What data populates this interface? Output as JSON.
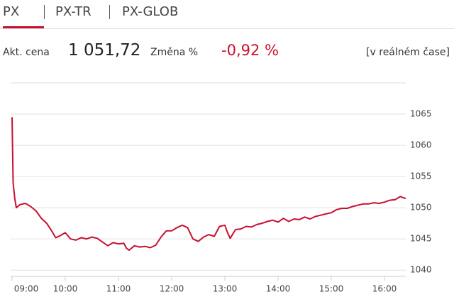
{
  "tabs": [
    "PX",
    "PX-TR",
    "PX-GLOB"
  ],
  "quote": {
    "price_label": "Akt. cena",
    "price": "1 051,72",
    "change_label": "Změna %",
    "change": "-0,92 %",
    "realtime": "[v reálném čase]"
  },
  "chart_data": {
    "type": "line",
    "x": [
      9.0,
      9.02,
      9.05,
      9.08,
      9.15,
      9.25,
      9.35,
      9.45,
      9.55,
      9.65,
      9.75,
      9.82,
      9.9,
      10.0,
      10.1,
      10.2,
      10.3,
      10.4,
      10.5,
      10.6,
      10.7,
      10.8,
      10.9,
      11.0,
      11.1,
      11.15,
      11.2,
      11.3,
      11.4,
      11.5,
      11.6,
      11.7,
      11.8,
      11.9,
      12.0,
      12.1,
      12.2,
      12.3,
      12.4,
      12.5,
      12.6,
      12.7,
      12.8,
      12.9,
      13.0,
      13.05,
      13.1,
      13.2,
      13.3,
      13.4,
      13.5,
      13.6,
      13.7,
      13.8,
      13.9,
      14.0,
      14.1,
      14.2,
      14.3,
      14.4,
      14.5,
      14.6,
      14.7,
      14.8,
      14.9,
      15.0,
      15.1,
      15.2,
      15.3,
      15.4,
      15.5,
      15.6,
      15.7,
      15.8,
      15.9,
      16.0,
      16.1,
      16.2,
      16.3,
      16.35,
      16.4
    ],
    "series": [
      {
        "color": "#c8102e",
        "values": [
          1064.5,
          1054,
          1051.5,
          1050,
          1050.5,
          1050.7,
          1050.2,
          1049.5,
          1048.3,
          1047.5,
          1046.2,
          1045.2,
          1045.5,
          1046,
          1045,
          1044.8,
          1045.2,
          1045,
          1045.3,
          1045.1,
          1044.5,
          1043.9,
          1044.4,
          1044.2,
          1044.3,
          1043.5,
          1043.2,
          1043.9,
          1043.7,
          1043.8,
          1043.6,
          1044.0,
          1045.3,
          1046.3,
          1046.3,
          1046.8,
          1047.2,
          1046.8,
          1045.0,
          1044.6,
          1045.3,
          1045.7,
          1045.4,
          1047.0,
          1047.2,
          1046.0,
          1045.1,
          1046.5,
          1046.6,
          1047.0,
          1046.9,
          1047.3,
          1047.5,
          1047.8,
          1048.0,
          1047.7,
          1048.3,
          1047.8,
          1048.2,
          1048.1,
          1048.5,
          1048.2,
          1048.6,
          1048.8,
          1049.0,
          1049.2,
          1049.7,
          1049.9,
          1049.9,
          1050.2,
          1050.4,
          1050.6,
          1050.6,
          1050.8,
          1050.7,
          1050.9,
          1051.2,
          1051.3,
          1051.8,
          1051.6,
          1051.5
        ]
      }
    ],
    "xlim": [
      9,
      16.4
    ],
    "xticks": [
      {
        "value": 9,
        "label": "09:00"
      },
      {
        "value": 10,
        "label": "10:00"
      },
      {
        "value": 11,
        "label": "11:00"
      },
      {
        "value": 12,
        "label": "12:00"
      },
      {
        "value": 13,
        "label": "13:00"
      },
      {
        "value": 14,
        "label": "14:00"
      },
      {
        "value": 15,
        "label": "15:00"
      },
      {
        "value": 16,
        "label": "16:00"
      }
    ],
    "ylim": [
      1039,
      1070
    ],
    "yticks": [
      1040,
      1045,
      1050,
      1055,
      1060,
      1065
    ],
    "grid": true
  }
}
